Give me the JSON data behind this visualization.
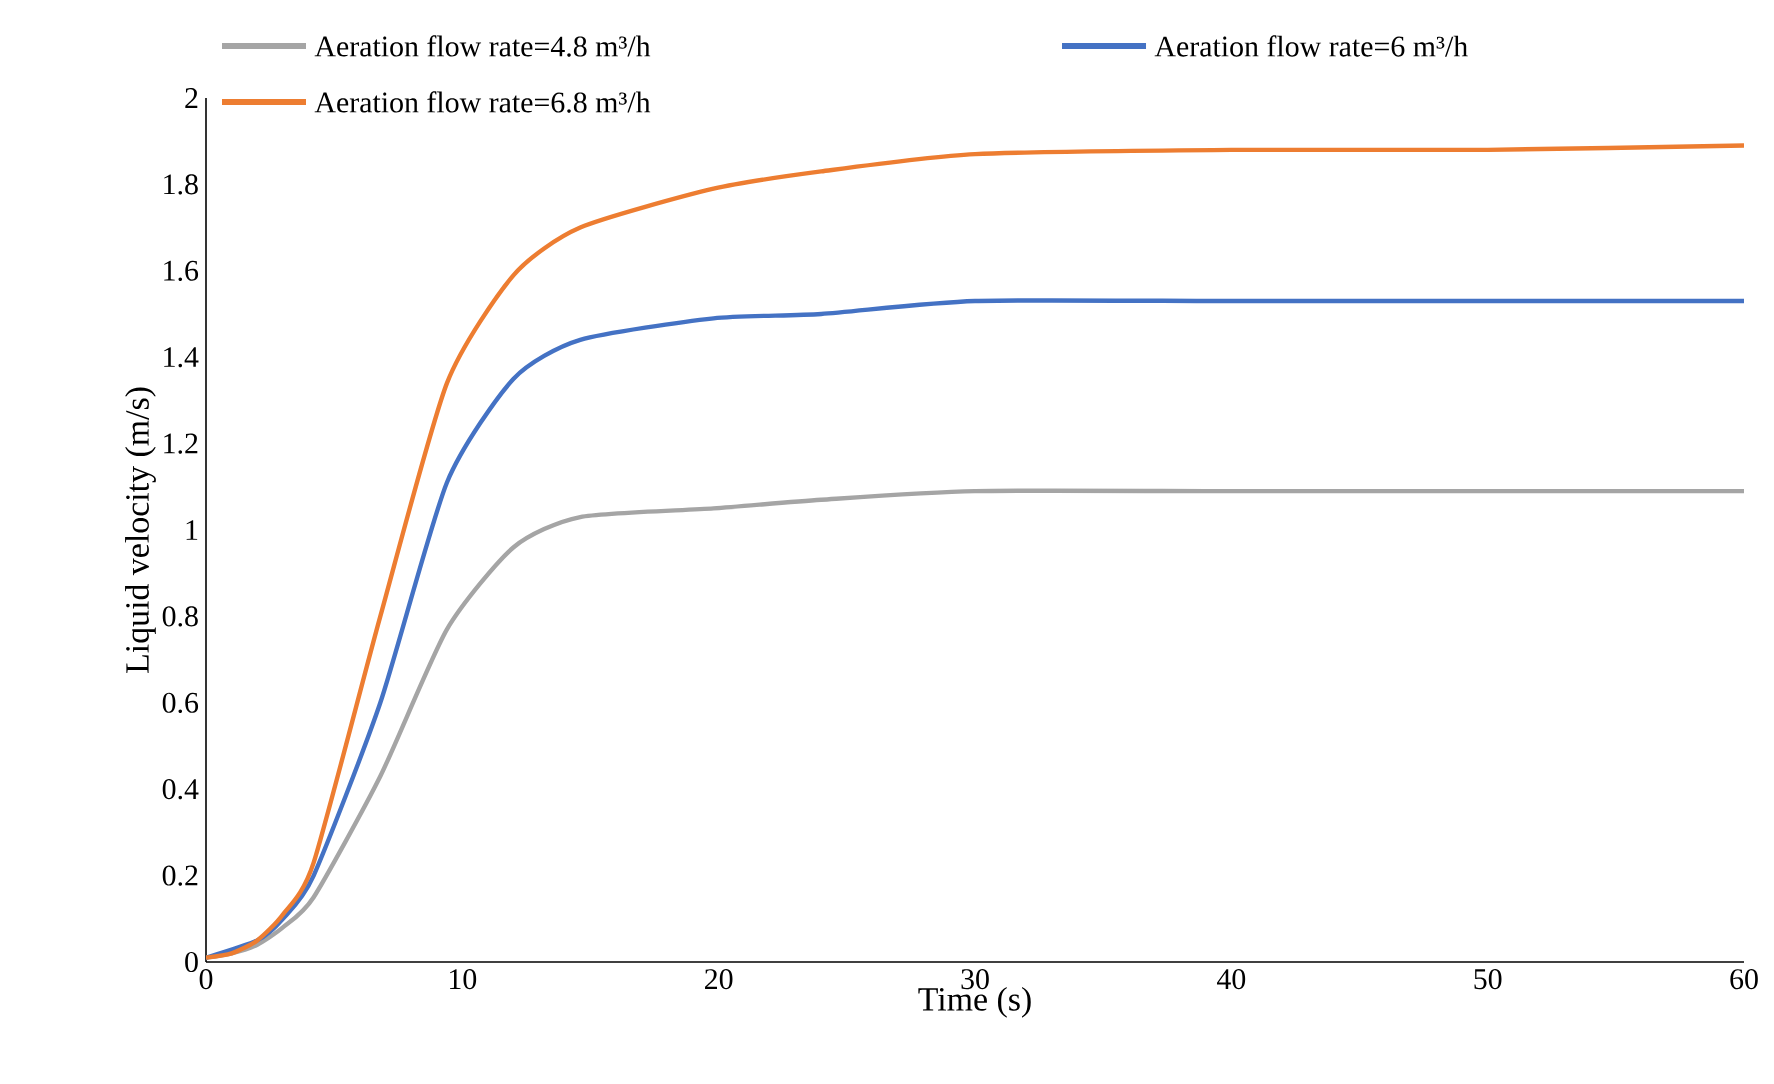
{
  "chart_data": {
    "type": "line",
    "xlabel": "Time (s)",
    "ylabel": "Liquid velocity (m/s)",
    "xlim": [
      0,
      60
    ],
    "xticks": [
      0,
      10,
      20,
      30,
      40,
      50,
      60
    ],
    "ylim": [
      0,
      2
    ],
    "yticks": [
      0,
      0.2,
      0.4,
      0.6,
      0.8,
      1,
      1.2,
      1.4,
      1.6,
      1.8,
      2
    ],
    "grid": false,
    "legend": "top",
    "marker": "none",
    "line_style": "solid",
    "x": [
      0,
      1,
      2,
      3,
      4.2,
      6.8,
      9.4,
      12,
      14.6,
      19.8,
      24,
      30,
      40,
      50,
      60
    ],
    "series": [
      {
        "name": "Aeration flow rate=4.8 m³/h",
        "color": "#a5a5a5",
        "values": [
          0.01,
          0.02,
          0.04,
          0.08,
          0.15,
          0.43,
          0.77,
          0.96,
          1.03,
          1.05,
          1.07,
          1.09,
          1.09,
          1.09,
          1.09
        ]
      },
      {
        "name": "Aeration flow rate=6 m³/h",
        "color": "#4472c4",
        "values": [
          0.01,
          null,
          0.05,
          0.1,
          0.2,
          0.6,
          1.11,
          1.35,
          1.44,
          1.49,
          1.5,
          1.53,
          1.53,
          1.53,
          1.53
        ]
      },
      {
        "name": "Aeration flow rate=6.8 m³/h",
        "color": "#ed7d31",
        "values": [
          0.01,
          0.02,
          0.05,
          0.11,
          0.23,
          0.8,
          1.34,
          1.59,
          1.7,
          1.79,
          1.83,
          1.87,
          1.88,
          1.88,
          1.89
        ]
      }
    ]
  }
}
